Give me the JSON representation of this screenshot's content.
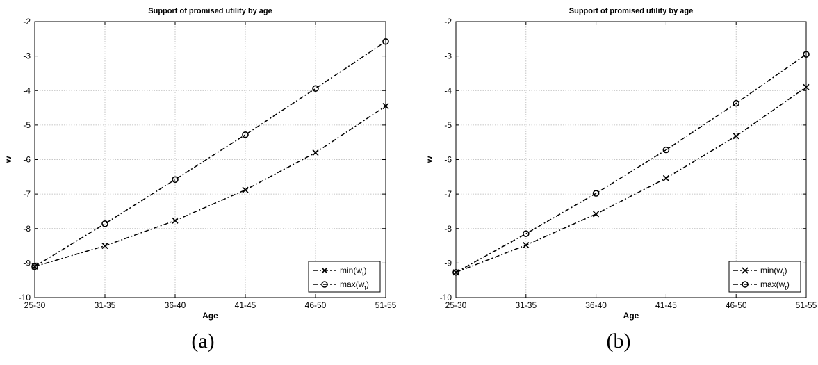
{
  "chart_data": [
    {
      "type": "line",
      "title": "Support of promised utility by age",
      "xlabel": "Age",
      "ylabel": "w",
      "caption": "(a)",
      "categories": [
        "25-30",
        "31-35",
        "36-40",
        "41-45",
        "46-50",
        "51-55"
      ],
      "ylim": [
        -10,
        -2
      ],
      "yticks": [
        "-10",
        "-9",
        "-8",
        "-7",
        "-6",
        "-5",
        "-4",
        "-3",
        "-2"
      ],
      "grid": true,
      "legend_position": "bottom-right",
      "series": [
        {
          "name": "min(w",
          "subscript": "t",
          "name_suffix": ")",
          "marker": "x",
          "values": [
            -9.1,
            -8.5,
            -7.77,
            -6.88,
            -5.8,
            -4.45
          ]
        },
        {
          "name": "max(w",
          "subscript": "t",
          "name_suffix": ")",
          "marker": "o",
          "values": [
            -9.1,
            -7.86,
            -6.58,
            -5.28,
            -3.94,
            -2.58
          ]
        }
      ]
    },
    {
      "type": "line",
      "title": "Support of promised utility by age",
      "xlabel": "Age",
      "ylabel": "w",
      "caption": "(b)",
      "categories": [
        "25-30",
        "31-35",
        "36-40",
        "41-45",
        "46-50",
        "51-55"
      ],
      "ylim": [
        -10,
        -2
      ],
      "yticks": [
        "-10",
        "-9",
        "-8",
        "-7",
        "-6",
        "-5",
        "-4",
        "-3",
        "-2"
      ],
      "grid": true,
      "legend_position": "bottom-right",
      "series": [
        {
          "name": "min(w",
          "subscript": "t",
          "name_suffix": ")",
          "marker": "x",
          "values": [
            -9.27,
            -8.48,
            -7.58,
            -6.54,
            -5.32,
            -3.9
          ]
        },
        {
          "name": "max(w",
          "subscript": "t",
          "name_suffix": ")",
          "marker": "o",
          "values": [
            -9.27,
            -8.15,
            -6.98,
            -5.72,
            -4.37,
            -2.95
          ]
        }
      ]
    }
  ]
}
